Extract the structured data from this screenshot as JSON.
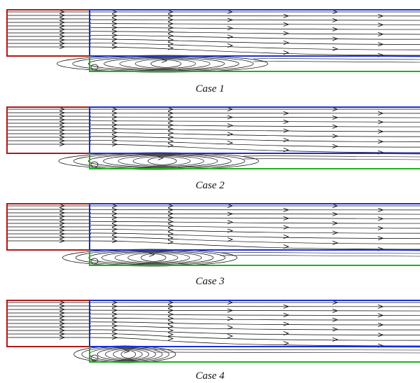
{
  "colors": {
    "inlet": "#b01818",
    "channel": "#1a2fd6",
    "cavity": "#1bb31b",
    "streamline": "#000000"
  },
  "cases": [
    {
      "label": "Case 1",
      "eddy_extent": 0.58
    },
    {
      "label": "Case 2",
      "eddy_extent": 0.55
    },
    {
      "label": "Case 3",
      "eddy_extent": 0.48
    },
    {
      "label": "Case 4",
      "eddy_extent": 0.28
    }
  ]
}
